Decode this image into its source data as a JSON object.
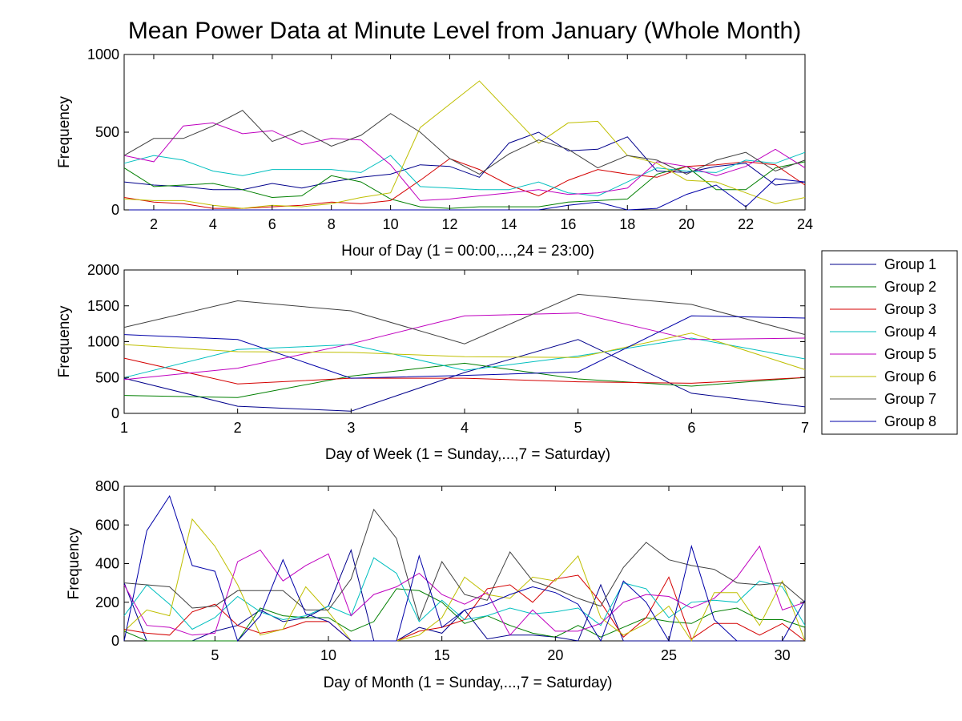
{
  "title": "Mean Power Data at Minute Level from January (Whole Month)",
  "legend": {
    "placement": "right",
    "entries": [
      "Group 1",
      "Group 2",
      "Group 3",
      "Group 4",
      "Group 5",
      "Group 6",
      "Group 7",
      "Group 8"
    ]
  },
  "colors": [
    "#00008b",
    "#007f00",
    "#d40000",
    "#00bfbf",
    "#bf00bf",
    "#bfbf00",
    "#404040",
    "#0000a8"
  ],
  "chart_data": [
    {
      "type": "line",
      "xlabel": "Hour of Day (1 = 00:00,...,24 = 23:00)",
      "ylabel": "Frequency",
      "xlim": [
        1,
        24
      ],
      "ylim": [
        0,
        1000
      ],
      "xticks": [
        2,
        4,
        6,
        8,
        10,
        12,
        14,
        16,
        18,
        20,
        22,
        24
      ],
      "yticks": [
        0,
        500,
        1000
      ],
      "grid": false,
      "x": [
        1,
        2,
        3,
        4,
        5,
        6,
        7,
        8,
        9,
        10,
        11,
        12,
        13,
        14,
        15,
        16,
        17,
        18,
        19,
        20,
        21,
        22,
        23,
        24
      ],
      "series": [
        {
          "name": "Group 1",
          "values": [
            180,
            160,
            150,
            130,
            130,
            170,
            140,
            180,
            210,
            230,
            290,
            280,
            210,
            430,
            500,
            380,
            390,
            470,
            250,
            240,
            280,
            300,
            160,
            180
          ]
        },
        {
          "name": "Group 2",
          "values": [
            270,
            150,
            160,
            170,
            130,
            80,
            90,
            220,
            180,
            70,
            20,
            10,
            20,
            20,
            20,
            50,
            60,
            70,
            230,
            280,
            130,
            130,
            270,
            310
          ]
        },
        {
          "name": "Group 3",
          "values": [
            80,
            50,
            40,
            10,
            10,
            20,
            30,
            50,
            40,
            60,
            190,
            330,
            260,
            160,
            90,
            190,
            260,
            230,
            210,
            280,
            290,
            310,
            290,
            160
          ]
        },
        {
          "name": "Group 4",
          "values": [
            300,
            350,
            320,
            250,
            220,
            260,
            260,
            260,
            240,
            350,
            150,
            140,
            130,
            130,
            180,
            110,
            90,
            180,
            270,
            250,
            240,
            320,
            300,
            370
          ]
        },
        {
          "name": "Group 5",
          "values": [
            350,
            310,
            540,
            560,
            490,
            510,
            420,
            460,
            450,
            290,
            60,
            70,
            90,
            110,
            130,
            100,
            110,
            140,
            310,
            280,
            220,
            280,
            390,
            270
          ]
        },
        {
          "name": "Group 6",
          "values": [
            70,
            60,
            60,
            30,
            10,
            30,
            20,
            40,
            80,
            110,
            530,
            680,
            830,
            630,
            430,
            560,
            570,
            350,
            300,
            190,
            180,
            110,
            40,
            80
          ]
        },
        {
          "name": "Group 7",
          "values": [
            350,
            460,
            460,
            540,
            640,
            440,
            510,
            410,
            480,
            620,
            500,
            330,
            230,
            360,
            450,
            390,
            270,
            350,
            320,
            230,
            320,
            370,
            250,
            320
          ]
        },
        {
          "name": "Group 8",
          "values": [
            0,
            0,
            0,
            0,
            0,
            0,
            0,
            0,
            0,
            0,
            0,
            0,
            0,
            0,
            0,
            30,
            50,
            0,
            10,
            100,
            160,
            20,
            200,
            180
          ]
        }
      ]
    },
    {
      "type": "line",
      "xlabel": "Day of Week (1 = Sunday,...,7 = Saturday)",
      "ylabel": "Frequency",
      "xlim": [
        1,
        7
      ],
      "ylim": [
        0,
        2000
      ],
      "xticks": [
        1,
        2,
        3,
        4,
        5,
        6,
        7
      ],
      "yticks": [
        0,
        500,
        1000,
        1500,
        2000
      ],
      "grid": false,
      "x": [
        1,
        2,
        3,
        4,
        5,
        6,
        7
      ],
      "series": [
        {
          "name": "Group 1",
          "values": [
            490,
            100,
            30,
            570,
            1030,
            280,
            90
          ]
        },
        {
          "name": "Group 2",
          "values": [
            250,
            220,
            520,
            700,
            480,
            380,
            500
          ]
        },
        {
          "name": "Group 3",
          "values": [
            770,
            410,
            490,
            490,
            440,
            420,
            500
          ]
        },
        {
          "name": "Group 4",
          "values": [
            500,
            890,
            960,
            600,
            800,
            1050,
            760
          ]
        },
        {
          "name": "Group 5",
          "values": [
            470,
            630,
            970,
            1360,
            1400,
            1030,
            1050
          ]
        },
        {
          "name": "Group 6",
          "values": [
            960,
            860,
            850,
            790,
            780,
            1120,
            610
          ]
        },
        {
          "name": "Group 7",
          "values": [
            1200,
            1570,
            1430,
            970,
            1660,
            1520,
            1100
          ]
        },
        {
          "name": "Group 8",
          "values": [
            1100,
            1030,
            490,
            530,
            580,
            1360,
            1330
          ]
        }
      ]
    },
    {
      "type": "line",
      "xlabel": "Day of Month (1 = Sunday,...,7 = Saturday)",
      "ylabel": "Frequency",
      "xlim": [
        1,
        31
      ],
      "ylim": [
        0,
        800
      ],
      "xticks": [
        5,
        10,
        15,
        20,
        25,
        30
      ],
      "yticks": [
        0,
        200,
        400,
        600,
        800
      ],
      "grid": false,
      "x": [
        1,
        2,
        3,
        4,
        5,
        6,
        7,
        8,
        9,
        10,
        11,
        12,
        13,
        14,
        15,
        16,
        17,
        18,
        19,
        20,
        21,
        22,
        23,
        24,
        25,
        26,
        27,
        28,
        29,
        30,
        31
      ],
      "series": [
        {
          "name": "Group 1",
          "values": [
            300,
            0,
            0,
            0,
            50,
            80,
            160,
            100,
            120,
            180,
            470,
            0,
            0,
            70,
            40,
            160,
            10,
            30,
            30,
            20,
            0,
            290,
            0,
            0,
            0,
            0,
            0,
            0,
            0,
            0,
            0
          ]
        },
        {
          "name": "Group 2",
          "values": [
            50,
            0,
            0,
            0,
            0,
            0,
            170,
            130,
            120,
            120,
            50,
            100,
            270,
            260,
            200,
            90,
            130,
            80,
            40,
            20,
            80,
            20,
            70,
            120,
            100,
            90,
            150,
            170,
            110,
            110,
            70
          ]
        },
        {
          "name": "Group 3",
          "values": [
            60,
            40,
            30,
            150,
            190,
            80,
            40,
            60,
            100,
            100,
            0,
            0,
            0,
            50,
            70,
            110,
            270,
            290,
            200,
            320,
            340,
            200,
            20,
            120,
            330,
            10,
            90,
            90,
            30,
            90,
            0
          ]
        },
        {
          "name": "Group 4",
          "values": [
            130,
            290,
            190,
            60,
            120,
            230,
            150,
            110,
            130,
            180,
            130,
            430,
            350,
            100,
            210,
            110,
            130,
            170,
            140,
            150,
            170,
            80,
            300,
            270,
            120,
            200,
            210,
            200,
            310,
            280,
            80
          ]
        },
        {
          "name": "Group 5",
          "values": [
            290,
            80,
            70,
            30,
            40,
            410,
            470,
            310,
            390,
            450,
            130,
            240,
            280,
            350,
            240,
            190,
            250,
            30,
            160,
            50,
            50,
            90,
            200,
            240,
            230,
            170,
            220,
            330,
            490,
            160,
            200
          ]
        },
        {
          "name": "Group 6",
          "values": [
            50,
            160,
            130,
            630,
            490,
            290,
            30,
            60,
            280,
            150,
            0,
            0,
            0,
            30,
            120,
            330,
            240,
            220,
            330,
            310,
            440,
            120,
            30,
            90,
            180,
            0,
            250,
            250,
            80,
            310,
            0
          ]
        },
        {
          "name": "Group 7",
          "values": [
            300,
            290,
            280,
            170,
            180,
            260,
            260,
            260,
            160,
            160,
            320,
            680,
            530,
            110,
            410,
            240,
            210,
            460,
            310,
            270,
            220,
            180,
            380,
            510,
            420,
            390,
            370,
            300,
            290,
            300,
            200
          ]
        },
        {
          "name": "Group 8",
          "values": [
            0,
            570,
            750,
            390,
            360,
            0,
            130,
            420,
            140,
            100,
            0,
            0,
            0,
            440,
            70,
            160,
            190,
            240,
            280,
            250,
            190,
            0,
            310,
            200,
            0,
            490,
            110,
            0,
            0,
            0,
            210
          ]
        }
      ]
    }
  ]
}
